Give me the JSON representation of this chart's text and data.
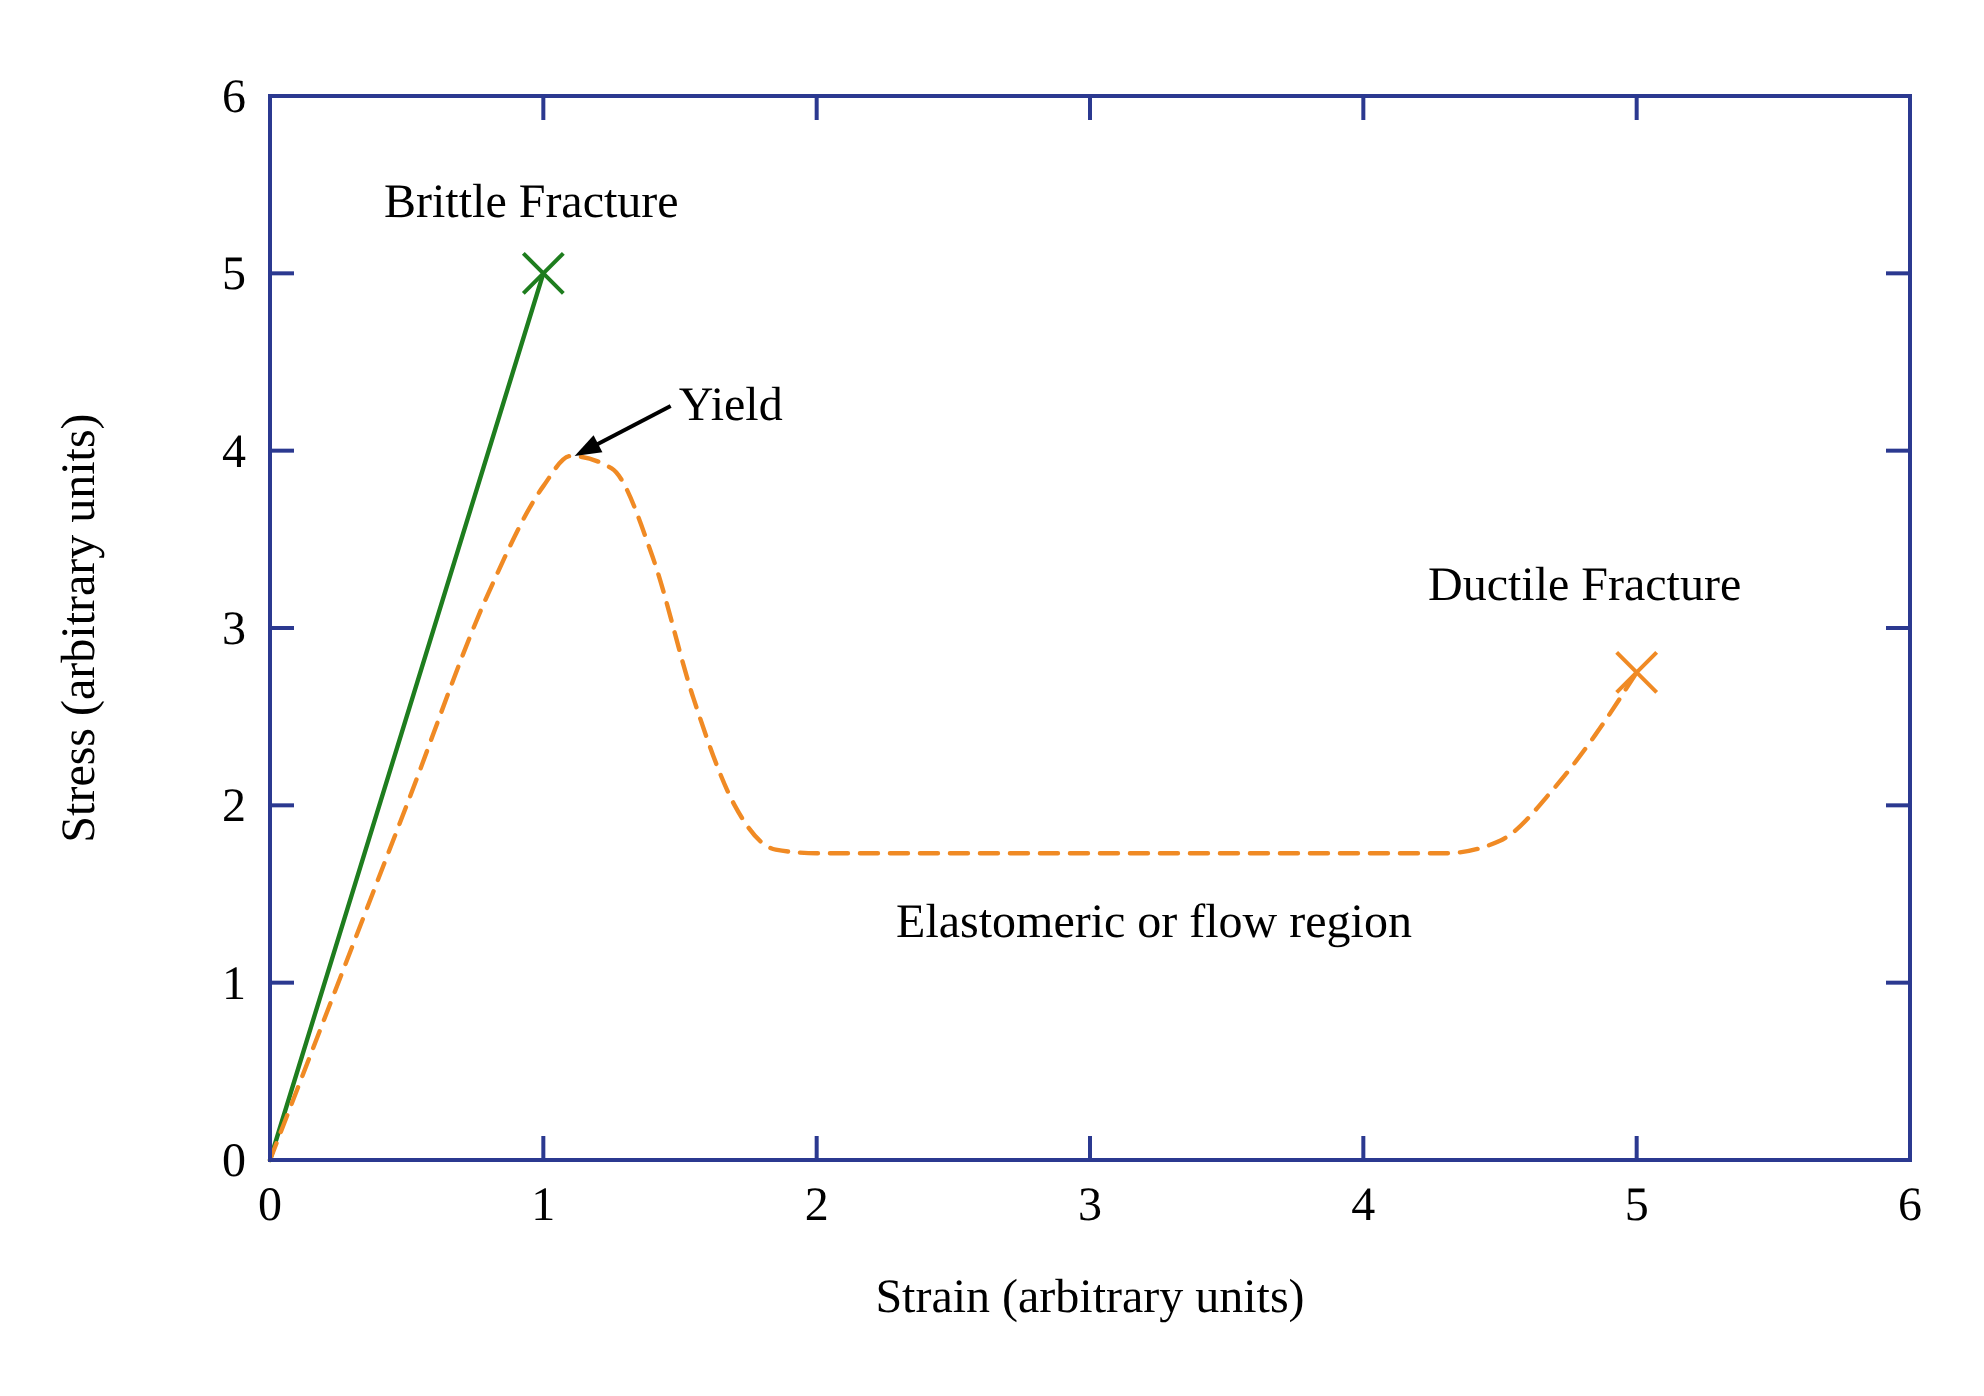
{
  "chart_data": {
    "type": "line",
    "xlabel": "Strain (arbitrary units)",
    "ylabel": "Stress (arbitrary units)",
    "xlim": [
      0,
      6
    ],
    "ylim": [
      0,
      6
    ],
    "xticks": [
      0,
      1,
      2,
      3,
      4,
      5,
      6
    ],
    "yticks": [
      0,
      1,
      2,
      3,
      4,
      5,
      6
    ],
    "grid": false,
    "series": [
      {
        "color": "#1e7d1e",
        "line_style": "solid",
        "marker": "none",
        "x": [
          0,
          1
        ],
        "values": [
          0,
          5
        ]
      },
      {
        "color": "#f08a24",
        "line_style": "dashed",
        "marker": "none",
        "x": [
          0,
          0.5,
          0.8,
          1.0,
          1.1,
          1.25,
          1.4,
          1.55,
          1.7,
          1.85,
          2.0,
          4.3,
          4.5,
          4.7,
          4.85,
          5.0
        ],
        "values": [
          0,
          2.0,
          3.2,
          3.8,
          3.97,
          3.9,
          3.4,
          2.6,
          2.0,
          1.75,
          1.73,
          1.73,
          1.8,
          2.1,
          2.4,
          2.75
        ]
      },
      {
        "type": "scatter",
        "color": "#1e7d1e",
        "marker": "cross",
        "x": [
          1
        ],
        "values": [
          5
        ]
      },
      {
        "type": "scatter",
        "color": "#f08a24",
        "marker": "cross",
        "x": [
          5
        ],
        "values": [
          2.75
        ]
      }
    ],
    "annotations": [
      {
        "text": "Brittle Fracture",
        "x": 1,
        "y": 5
      },
      {
        "text": "Yield",
        "x": 1.1,
        "y": 3.97
      },
      {
        "text": "Ductile Fracture",
        "x": 5,
        "y": 2.75
      },
      {
        "text": "Elastomeric or flow region",
        "x": 3,
        "y": 1.73
      }
    ]
  }
}
